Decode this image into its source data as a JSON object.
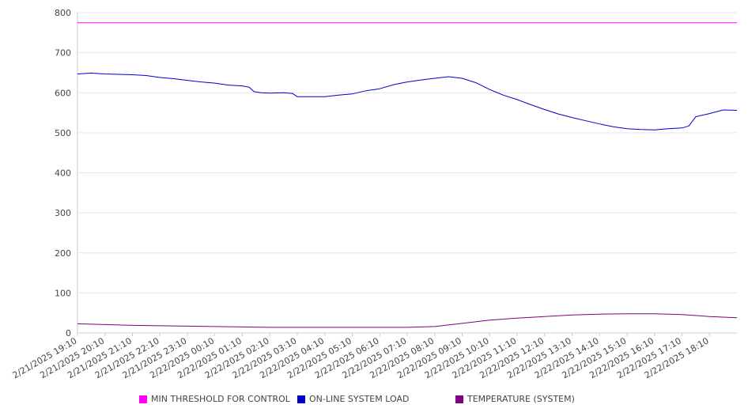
{
  "chart_data": {
    "type": "line",
    "title": "",
    "xlabel": "",
    "ylabel": "",
    "ylim": [
      0,
      800
    ],
    "yticks": [
      "0",
      "100",
      "200",
      "300",
      "400",
      "500",
      "600",
      "700",
      "800"
    ],
    "xticks": [
      "2/21/2025 19:10",
      "2/21/2025 20:10",
      "2/21/2025 21:10",
      "2/21/2025 22:10",
      "2/21/2025 23:10",
      "2/22/2025 00:10",
      "2/22/2025 01:10",
      "2/22/2025 02:10",
      "2/22/2025 03:10",
      "2/22/2025 04:10",
      "2/22/2025 05:10",
      "2/22/2025 06:10",
      "2/22/2025 07:10",
      "2/22/2025 08:10",
      "2/22/2025 09:10",
      "2/22/2025 10:10",
      "2/22/2025 11:10",
      "2/22/2025 12:10",
      "2/22/2025 13:10",
      "2/22/2025 14:10",
      "2/22/2025 15:10",
      "2/22/2025 16:10",
      "2/22/2025 17:10",
      "2/22/2025 18:10"
    ],
    "x_start": "2/21/2025 19:10",
    "x_end": "2/22/2025 19:10",
    "grid": true,
    "legend_position": "bottom",
    "series": [
      {
        "name": "MIN THRESHOLD FOR CONTROL",
        "color": "#ff00ff",
        "points": [
          [
            "2/21/2025 19:10",
            775
          ],
          [
            "2/22/2025 19:10",
            775
          ]
        ]
      },
      {
        "name": "ON-LINE SYSTEM LOAD",
        "color": "#0000cc",
        "points": [
          [
            "2/21/2025 19:10",
            647
          ],
          [
            "2/21/2025 19:40",
            649
          ],
          [
            "2/21/2025 20:10",
            647
          ],
          [
            "2/21/2025 20:40",
            646
          ],
          [
            "2/21/2025 21:10",
            645
          ],
          [
            "2/21/2025 21:40",
            643
          ],
          [
            "2/21/2025 22:10",
            638
          ],
          [
            "2/21/2025 22:40",
            635
          ],
          [
            "2/21/2025 23:10",
            631
          ],
          [
            "2/21/2025 23:40",
            627
          ],
          [
            "2/22/2025 00:10",
            624
          ],
          [
            "2/22/2025 00:40",
            619
          ],
          [
            "2/22/2025 01:10",
            617
          ],
          [
            "2/22/2025 01:25",
            614
          ],
          [
            "2/22/2025 01:35",
            603
          ],
          [
            "2/22/2025 01:50",
            600
          ],
          [
            "2/22/2025 02:10",
            599
          ],
          [
            "2/22/2025 02:40",
            600
          ],
          [
            "2/22/2025 03:00",
            598
          ],
          [
            "2/22/2025 03:10",
            590
          ],
          [
            "2/22/2025 03:40",
            590
          ],
          [
            "2/22/2025 04:10",
            590
          ],
          [
            "2/22/2025 04:40",
            594
          ],
          [
            "2/22/2025 05:10",
            597
          ],
          [
            "2/22/2025 05:40",
            605
          ],
          [
            "2/22/2025 06:10",
            610
          ],
          [
            "2/22/2025 06:40",
            620
          ],
          [
            "2/22/2025 07:10",
            627
          ],
          [
            "2/22/2025 07:40",
            632
          ],
          [
            "2/22/2025 08:10",
            636
          ],
          [
            "2/22/2025 08:40",
            640
          ],
          [
            "2/22/2025 09:10",
            636
          ],
          [
            "2/22/2025 09:40",
            625
          ],
          [
            "2/22/2025 10:10",
            608
          ],
          [
            "2/22/2025 10:40",
            594
          ],
          [
            "2/22/2025 11:10",
            583
          ],
          [
            "2/22/2025 11:40",
            570
          ],
          [
            "2/22/2025 12:10",
            558
          ],
          [
            "2/22/2025 12:40",
            547
          ],
          [
            "2/22/2025 13:10",
            538
          ],
          [
            "2/22/2025 13:40",
            530
          ],
          [
            "2/22/2025 14:10",
            522
          ],
          [
            "2/22/2025 14:40",
            515
          ],
          [
            "2/22/2025 15:10",
            510
          ],
          [
            "2/22/2025 15:40",
            508
          ],
          [
            "2/22/2025 16:10",
            507
          ],
          [
            "2/22/2025 16:40",
            510
          ],
          [
            "2/22/2025 17:10",
            512
          ],
          [
            "2/22/2025 17:25",
            517
          ],
          [
            "2/22/2025 17:40",
            540
          ],
          [
            "2/22/2025 18:10",
            548
          ],
          [
            "2/22/2025 18:40",
            557
          ],
          [
            "2/22/2025 19:10",
            556
          ]
        ]
      },
      {
        "name": "TEMPERATURE (SYSTEM)",
        "color": "#800080",
        "points": [
          [
            "2/21/2025 19:10",
            23
          ],
          [
            "2/21/2025 20:10",
            21
          ],
          [
            "2/21/2025 21:10",
            19
          ],
          [
            "2/21/2025 22:10",
            18
          ],
          [
            "2/21/2025 23:10",
            17
          ],
          [
            "2/22/2025 00:10",
            16
          ],
          [
            "2/22/2025 01:10",
            15
          ],
          [
            "2/22/2025 02:10",
            14
          ],
          [
            "2/22/2025 03:10",
            14
          ],
          [
            "2/22/2025 04:10",
            14
          ],
          [
            "2/22/2025 05:10",
            14
          ],
          [
            "2/22/2025 06:10",
            14
          ],
          [
            "2/22/2025 07:10",
            14
          ],
          [
            "2/22/2025 08:10",
            16
          ],
          [
            "2/22/2025 08:40",
            20
          ],
          [
            "2/22/2025 09:10",
            24
          ],
          [
            "2/22/2025 10:10",
            32
          ],
          [
            "2/22/2025 11:10",
            37
          ],
          [
            "2/22/2025 12:10",
            41
          ],
          [
            "2/22/2025 13:10",
            45
          ],
          [
            "2/22/2025 14:10",
            47
          ],
          [
            "2/22/2025 15:10",
            48
          ],
          [
            "2/22/2025 16:10",
            48
          ],
          [
            "2/22/2025 17:10",
            46
          ],
          [
            "2/22/2025 18:10",
            41
          ],
          [
            "2/22/2025 19:10",
            38
          ]
        ]
      }
    ]
  },
  "legend": [
    {
      "label": "MIN THRESHOLD FOR CONTROL",
      "color": "#ff00ff"
    },
    {
      "label": "ON-LINE SYSTEM LOAD",
      "color": "#0000cc"
    },
    {
      "label": "TEMPERATURE (SYSTEM)",
      "color": "#800080"
    }
  ]
}
